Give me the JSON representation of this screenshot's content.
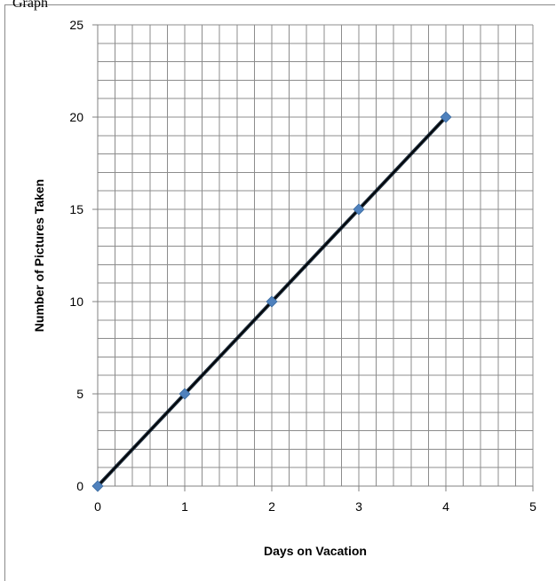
{
  "top_text": "Graph",
  "chart_data": {
    "type": "line",
    "title": "",
    "xlabel": "Days on Vacation",
    "ylabel": "Number of Pictures Taken",
    "xlim": [
      0,
      5
    ],
    "ylim": [
      0,
      25
    ],
    "x_ticks": [
      0,
      1,
      2,
      3,
      4,
      5
    ],
    "y_ticks": [
      0,
      5,
      10,
      15,
      20,
      25
    ],
    "minor_x_step": 0.2,
    "minor_y_step": 1,
    "grid": true,
    "series": [
      {
        "x": [
          0,
          1,
          2,
          3,
          4
        ],
        "y": [
          0,
          5,
          10,
          15,
          20
        ],
        "marker": "diamond",
        "marker_color": "#4f81bd",
        "line_color": "#1f2f3f"
      }
    ],
    "trendline": {
      "x": [
        0,
        4
      ],
      "y": [
        0,
        20
      ],
      "color": "#000000"
    }
  }
}
